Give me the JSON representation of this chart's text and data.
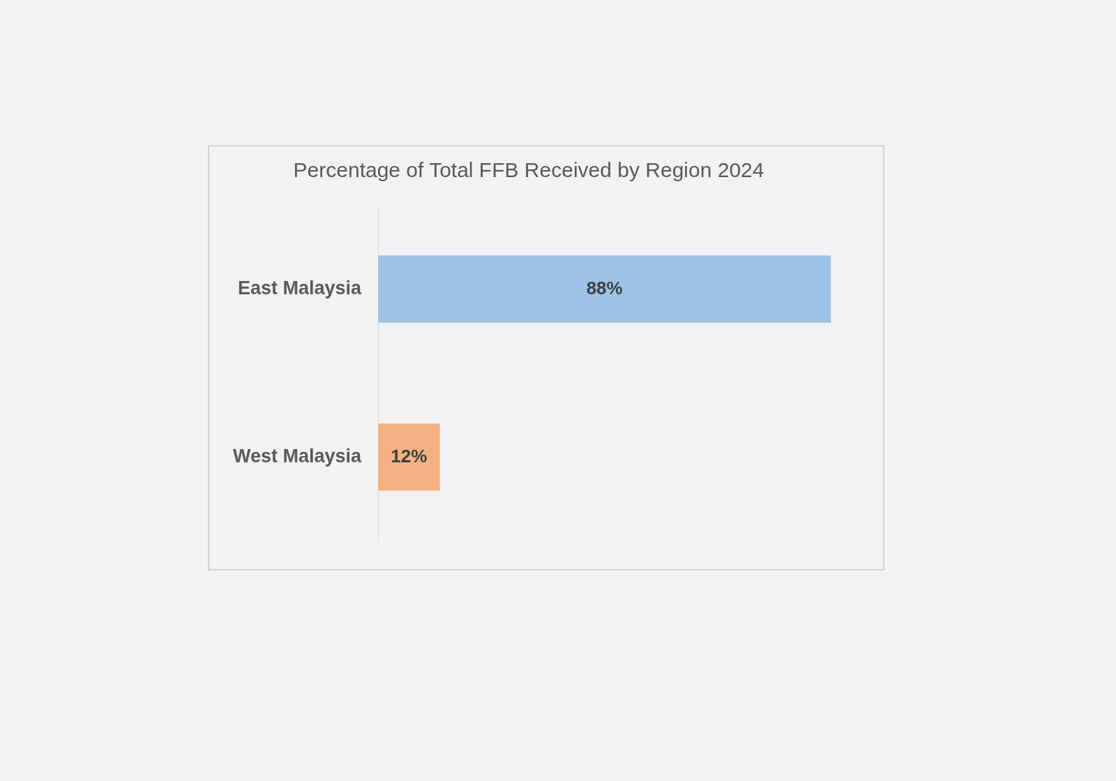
{
  "chart_data": {
    "type": "bar",
    "orientation": "horizontal",
    "title": "Percentage of Total FFB Received by Region 2024",
    "categories": [
      "East Malaysia",
      "West Malaysia"
    ],
    "values": [
      88,
      12
    ],
    "colors": [
      "#9dc3e6",
      "#f4b183"
    ],
    "value_labels": [
      "88%",
      "12%"
    ],
    "legend": false,
    "tick_labels": "y"
  }
}
